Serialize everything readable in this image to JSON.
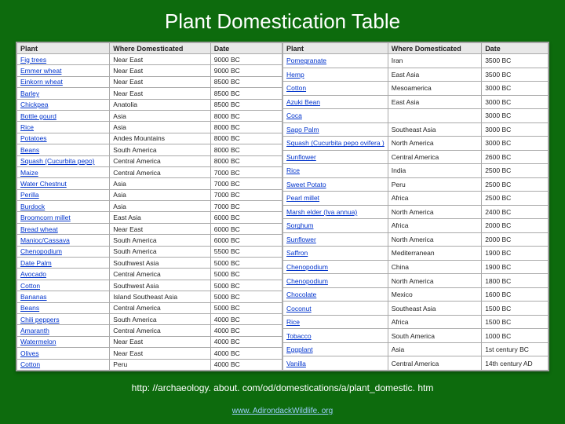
{
  "title": "Plant Domestication Table",
  "columns": [
    "Plant",
    "Where Domesticated",
    "Date"
  ],
  "table_style": {
    "background_color": "#0d6b0d",
    "table_bg": "#ffffff",
    "header_bg": "#e8e8e8",
    "border_color": "#aaaaaa",
    "link_color": "#0033cc",
    "title_color": "#ffffff",
    "title_fontsize": 26,
    "cell_fontsize": 8.5
  },
  "left": [
    [
      "Fig trees",
      "Near East",
      "9000 BC"
    ],
    [
      "Emmer wheat",
      "Near East",
      "9000 BC"
    ],
    [
      "Einkorn wheat",
      "Near East",
      "8500 BC"
    ],
    [
      "Barley",
      "Near East",
      "8500 BC"
    ],
    [
      "Chickpea",
      "Anatolia",
      "8500 BC"
    ],
    [
      "Bottle gourd",
      "Asia",
      "8000 BC"
    ],
    [
      "Rice",
      "Asia",
      "8000 BC"
    ],
    [
      "Potatoes",
      "Andes Mountains",
      "8000 BC"
    ],
    [
      "Beans",
      "South America",
      "8000 BC"
    ],
    [
      "Squash (Cucurbita pepo)",
      "Central America",
      "8000 BC"
    ],
    [
      "Maize",
      "Central America",
      "7000 BC"
    ],
    [
      "Water Chestnut",
      "Asia",
      "7000 BC"
    ],
    [
      "Perilla",
      "Asia",
      "7000 BC"
    ],
    [
      "Burdock",
      "Asia",
      "7000 BC"
    ],
    [
      "Broomcorn millet",
      "East Asia",
      "6000 BC"
    ],
    [
      "Bread wheat",
      "Near East",
      "6000 BC"
    ],
    [
      "Manioc/Cassava",
      "South America",
      "6000 BC"
    ],
    [
      "Chenopodium",
      "South America",
      "5500 BC"
    ],
    [
      "Date Palm",
      "Southwest Asia",
      "5000 BC"
    ],
    [
      "Avocado",
      "Central America",
      "5000 BC"
    ],
    [
      "Cotton",
      "Southwest Asia",
      "5000 BC"
    ],
    [
      "Bananas",
      "Island Southeast Asia",
      "5000 BC"
    ],
    [
      "Beans",
      "Central America",
      "5000 BC"
    ],
    [
      "Chili peppers",
      "South America",
      "4000 BC"
    ],
    [
      "Amaranth",
      "Central America",
      "4000 BC"
    ],
    [
      "Watermelon",
      "Near East",
      "4000 BC"
    ],
    [
      "Olives",
      "Near East",
      "4000 BC"
    ],
    [
      "Cotton",
      "Peru",
      "4000 BC"
    ]
  ],
  "right": [
    [
      "Pomegranate",
      "Iran",
      "3500 BC"
    ],
    [
      "Hemp",
      "East Asia",
      "3500 BC"
    ],
    [
      "Cotton",
      "Mesoamerica",
      "3000 BC"
    ],
    [
      "Azuki Bean",
      "East Asia",
      "3000 BC"
    ],
    [
      "Coca",
      "",
      "3000 BC"
    ],
    [
      "Sago Palm",
      "Southeast Asia",
      "3000 BC"
    ],
    [
      "Squash (Cucurbita pepo ovifera )",
      "North America",
      "3000 BC"
    ],
    [
      "Sunflower",
      "Central America",
      "2600 BC"
    ],
    [
      "Rice",
      "India",
      "2500 BC"
    ],
    [
      "Sweet Potato",
      "Peru",
      "2500 BC"
    ],
    [
      "Pearl millet",
      "Africa",
      "2500 BC"
    ],
    [
      "Marsh elder (Iva annua)",
      "North America",
      "2400 BC"
    ],
    [
      "Sorghum",
      "Africa",
      "2000 BC"
    ],
    [
      "Sunflower",
      "North America",
      "2000 BC"
    ],
    [
      "Saffron",
      "Mediterranean",
      "1900 BC"
    ],
    [
      "Chenopodium",
      "China",
      "1900 BC"
    ],
    [
      "Chenopodium",
      "North America",
      "1800 BC"
    ],
    [
      "Chocolate",
      "Mexico",
      "1600 BC"
    ],
    [
      "Coconut",
      "Southeast Asia",
      "1500 BC"
    ],
    [
      "Rice",
      "Africa",
      "1500 BC"
    ],
    [
      "Tobacco",
      "South America",
      "1000 BC"
    ],
    [
      "Eggplant",
      "Asia",
      "1st century BC"
    ],
    [
      "Vanilla",
      "Central America",
      "14th century AD"
    ]
  ],
  "source_text": "http: //archaeology. about. com/od/domestications/a/plant_domestic. htm",
  "footer_link": "www. AdirondackWildlife. org"
}
